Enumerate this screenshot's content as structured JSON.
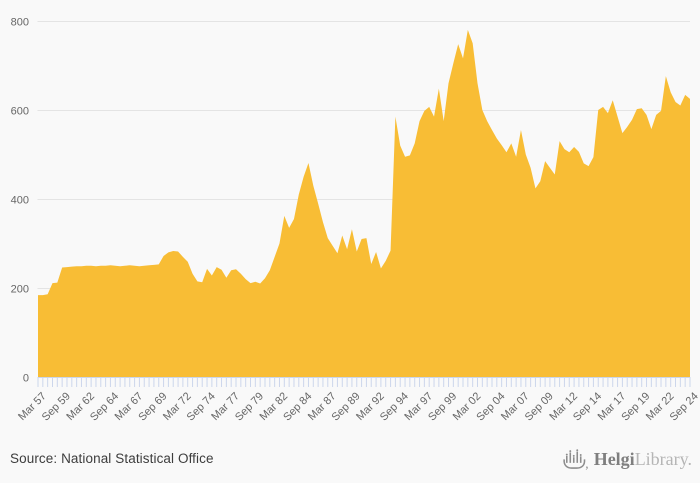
{
  "page": {
    "background_color": "#f9f9f9"
  },
  "chart_data": {
    "type": "area",
    "title": "",
    "frequency": "semi-annual",
    "x_labels": [
      "Mar 57",
      "Sep 59",
      "Mar 62",
      "Sep 64",
      "Mar 67",
      "Sep 69",
      "Mar 72",
      "Sep 74",
      "Mar 77",
      "Sep 79",
      "Mar 82",
      "Sep 84",
      "Mar 87",
      "Sep 89",
      "Mar 92",
      "Sep 94",
      "Mar 97",
      "Sep 99",
      "Mar 02",
      "Sep 04",
      "Mar 07",
      "Sep 09",
      "Mar 12",
      "Sep 14",
      "Mar 17",
      "Sep 19",
      "Mar 22",
      "Sep 24"
    ],
    "label_step": 5,
    "values": [
      184,
      184,
      186,
      211,
      212,
      246,
      247,
      248,
      249,
      249,
      250,
      250,
      249,
      250,
      250,
      251,
      250,
      249,
      250,
      251,
      250,
      249,
      250,
      251,
      252,
      253,
      272,
      280,
      283,
      282,
      270,
      259,
      232,
      215,
      213,
      243,
      228,
      247,
      241,
      223,
      240,
      242,
      232,
      220,
      211,
      214,
      210,
      222,
      240,
      270,
      300,
      362,
      335,
      355,
      410,
      450,
      481,
      430,
      390,
      348,
      312,
      295,
      278,
      318,
      287,
      332,
      282,
      310,
      312,
      254,
      281,
      244,
      261,
      284,
      585,
      520,
      495,
      498,
      525,
      575,
      598,
      607,
      585,
      648,
      575,
      660,
      705,
      748,
      716,
      780,
      750,
      660,
      600,
      575,
      555,
      536,
      521,
      505,
      525,
      495,
      555,
      500,
      470,
      424,
      440,
      485,
      470,
      455,
      530,
      512,
      505,
      517,
      506,
      480,
      474,
      494,
      600,
      607,
      593,
      622,
      585,
      548,
      562,
      578,
      602,
      604,
      589,
      557,
      589,
      598,
      676,
      640,
      618,
      610,
      634,
      625
    ],
    "ylim": [
      0,
      800
    ],
    "y_ticks": [
      0,
      200,
      400,
      600,
      800
    ],
    "grid": true,
    "legend": false,
    "colors": {
      "area_fill": "#f8bd35",
      "grid_line": "#e4e4e4",
      "axis_tick": "#ccd6eb",
      "axis_label": "#666666"
    }
  },
  "footer": {
    "source": "Source: National Statistical Office",
    "logo": {
      "icon": "helgi-ship-bar-chart-icon",
      "primary": "Helgi",
      "secondary": "Library.",
      "primary_color": "#7f7f7f",
      "secondary_color": "#b5b5b5",
      "icon_color": "#8d8d8d"
    }
  }
}
